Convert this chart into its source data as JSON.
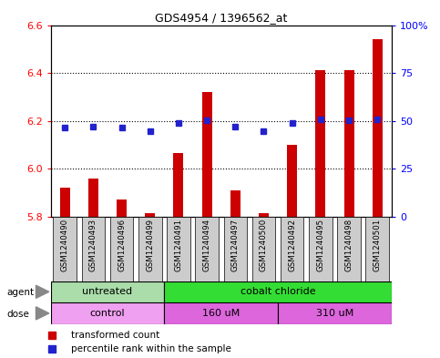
{
  "title": "GDS4954 / 1396562_at",
  "samples": [
    "GSM1240490",
    "GSM1240493",
    "GSM1240496",
    "GSM1240499",
    "GSM1240491",
    "GSM1240494",
    "GSM1240497",
    "GSM1240500",
    "GSM1240492",
    "GSM1240495",
    "GSM1240498",
    "GSM1240501"
  ],
  "transformed_count": [
    5.92,
    5.96,
    5.87,
    5.815,
    6.065,
    6.32,
    5.91,
    5.815,
    6.1,
    6.41,
    6.41,
    6.54
  ],
  "percentile_rank": [
    46.5,
    47.0,
    46.5,
    44.5,
    49.0,
    50.5,
    47.0,
    44.5,
    49.0,
    51.0,
    50.5,
    51.0
  ],
  "ylim_left": [
    5.8,
    6.6
  ],
  "ylim_right": [
    0,
    100
  ],
  "yticks_left": [
    5.8,
    6.0,
    6.2,
    6.4,
    6.6
  ],
  "yticks_right": [
    0,
    25,
    50,
    75,
    100
  ],
  "ytick_labels_right": [
    "0",
    "25",
    "50",
    "75",
    "100%"
  ],
  "bar_color": "#cc0000",
  "dot_color": "#2222cc",
  "agent_groups": [
    {
      "label": "untreated",
      "start": 0,
      "end": 4,
      "color": "#aaddaa"
    },
    {
      "label": "cobalt chloride",
      "start": 4,
      "end": 12,
      "color": "#33dd33"
    }
  ],
  "dose_groups": [
    {
      "label": "control",
      "start": 0,
      "end": 4,
      "color": "#f0a0f0"
    },
    {
      "label": "160 uM",
      "start": 4,
      "end": 8,
      "color": "#dd66dd"
    },
    {
      "label": "310 uM",
      "start": 8,
      "end": 12,
      "color": "#dd66dd"
    }
  ],
  "legend_items": [
    {
      "label": "transformed count",
      "color": "#cc0000"
    },
    {
      "label": "percentile rank within the sample",
      "color": "#2222cc"
    }
  ],
  "grid_yticks": [
    6.0,
    6.2,
    6.4,
    6.6
  ],
  "grid_color": "black",
  "background_color": "#ffffff",
  "sample_box_color": "#cccccc",
  "bar_width": 0.35
}
